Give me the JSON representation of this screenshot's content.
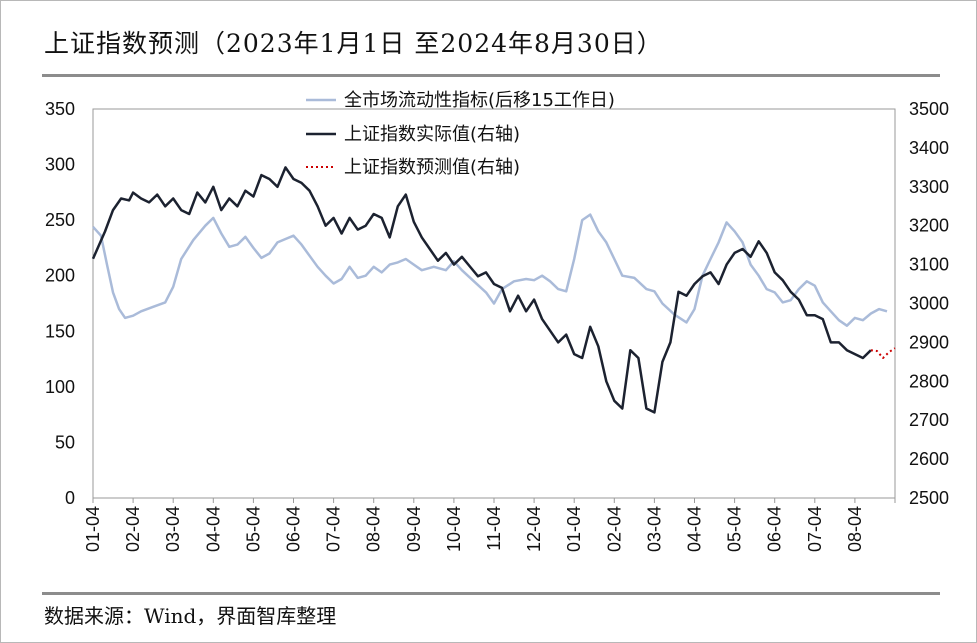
{
  "title": "上证指数预测（2023年1月1日 至2024年8月30日）",
  "source": "数据来源：Wind，界面智库整理",
  "chart_data": {
    "type": "line",
    "title": "上证指数预测（2023年1月1日 至2024年8月30日）",
    "x_tick_labels": [
      "01-04",
      "02-04",
      "03-04",
      "04-04",
      "05-04",
      "06-04",
      "07-04",
      "08-04",
      "09-04",
      "10-04",
      "11-04",
      "12-04",
      "01-04",
      "02-04",
      "03-04",
      "04-04",
      "05-04",
      "06-04",
      "07-04",
      "08-04"
    ],
    "left_axis": {
      "ylim": [
        0,
        350
      ],
      "ticks": [
        0,
        50,
        100,
        150,
        200,
        250,
        300,
        350
      ]
    },
    "right_axis": {
      "ylim": [
        2500,
        3500
      ],
      "ticks": [
        2500,
        2600,
        2700,
        2800,
        2900,
        3000,
        3100,
        3200,
        3300,
        3400,
        3500
      ]
    },
    "legend_position": "top-center",
    "grid": false,
    "series": [
      {
        "name": "全市场流动性指标(后移15工作日)",
        "axis": "left",
        "color": "#aabbd9",
        "x": [
          0,
          0.2,
          0.35,
          0.5,
          0.65,
          0.8,
          1,
          1.2,
          1.5,
          1.8,
          2.0,
          2.2,
          2.5,
          2.8,
          3.0,
          3.2,
          3.4,
          3.6,
          3.8,
          4.0,
          4.2,
          4.4,
          4.6,
          4.8,
          5.0,
          5.2,
          5.4,
          5.6,
          5.8,
          6.0,
          6.2,
          6.4,
          6.6,
          6.8,
          7.0,
          7.2,
          7.4,
          7.6,
          7.8,
          8.0,
          8.2,
          8.5,
          8.8,
          9.0,
          9.2,
          9.5,
          9.8,
          10.0,
          10.2,
          10.5,
          10.8,
          11.0,
          11.2,
          11.4,
          11.6,
          11.8,
          12.0,
          12.2,
          12.4,
          12.6,
          12.8,
          13.0,
          13.2,
          13.5,
          13.8,
          14.0,
          14.2,
          14.5,
          14.8,
          15.0,
          15.2,
          15.4,
          15.6,
          15.8,
          16.0,
          16.2,
          16.4,
          16.6,
          16.8,
          17.0,
          17.2,
          17.4,
          17.6,
          17.8,
          18.0,
          18.2,
          18.4,
          18.6,
          18.8,
          19.0,
          19.2,
          19.4,
          19.6,
          19.8
        ],
        "values": [
          244,
          236,
          210,
          185,
          170,
          162,
          164,
          168,
          172,
          176,
          190,
          215,
          232,
          245,
          252,
          238,
          226,
          228,
          235,
          225,
          216,
          220,
          230,
          233,
          236,
          228,
          218,
          208,
          200,
          193,
          197,
          208,
          198,
          200,
          208,
          203,
          210,
          212,
          215,
          210,
          205,
          208,
          205,
          213,
          205,
          195,
          185,
          175,
          188,
          195,
          197,
          196,
          200,
          195,
          188,
          186,
          215,
          250,
          255,
          240,
          230,
          215,
          200,
          198,
          188,
          186,
          175,
          165,
          158,
          170,
          200,
          215,
          230,
          248,
          240,
          230,
          210,
          200,
          188,
          185,
          176,
          178,
          188,
          195,
          191,
          176,
          168,
          160,
          155,
          162,
          160,
          166,
          170,
          168
        ]
      },
      {
        "name": "上证指数实际值(右轴)",
        "axis": "right",
        "color": "#1c2230",
        "x": [
          0,
          0.15,
          0.3,
          0.5,
          0.7,
          0.9,
          1.0,
          1.2,
          1.4,
          1.6,
          1.8,
          2.0,
          2.2,
          2.4,
          2.6,
          2.8,
          3.0,
          3.2,
          3.4,
          3.6,
          3.8,
          4.0,
          4.2,
          4.4,
          4.6,
          4.8,
          5.0,
          5.2,
          5.4,
          5.6,
          5.8,
          6.0,
          6.2,
          6.4,
          6.6,
          6.8,
          7.0,
          7.2,
          7.4,
          7.6,
          7.8,
          8.0,
          8.2,
          8.4,
          8.6,
          8.8,
          9.0,
          9.2,
          9.4,
          9.6,
          9.8,
          10.0,
          10.2,
          10.4,
          10.6,
          10.8,
          11.0,
          11.2,
          11.4,
          11.6,
          11.8,
          12.0,
          12.2,
          12.4,
          12.6,
          12.8,
          13.0,
          13.2,
          13.4,
          13.6,
          13.8,
          14.0,
          14.2,
          14.4,
          14.6,
          14.8,
          15.0,
          15.2,
          15.4,
          15.6,
          15.8,
          16.0,
          16.2,
          16.4,
          16.6,
          16.8,
          17.0,
          17.2,
          17.4,
          17.6,
          17.8,
          18.0,
          18.2,
          18.4,
          18.6,
          18.8,
          19.0,
          19.2,
          19.4
        ],
        "values": [
          3115,
          3150,
          3185,
          3240,
          3270,
          3265,
          3285,
          3270,
          3260,
          3280,
          3250,
          3270,
          3240,
          3230,
          3285,
          3260,
          3300,
          3240,
          3270,
          3250,
          3290,
          3275,
          3330,
          3320,
          3300,
          3350,
          3320,
          3310,
          3290,
          3250,
          3200,
          3220,
          3180,
          3220,
          3190,
          3200,
          3230,
          3220,
          3170,
          3250,
          3280,
          3210,
          3170,
          3140,
          3110,
          3130,
          3100,
          3120,
          3095,
          3070,
          3080,
          3050,
          3040,
          2980,
          3020,
          2980,
          3010,
          2960,
          2930,
          2900,
          2920,
          2870,
          2860,
          2940,
          2890,
          2800,
          2750,
          2730,
          2880,
          2860,
          2730,
          2720,
          2850,
          2900,
          3030,
          3020,
          3050,
          3070,
          3080,
          3050,
          3100,
          3130,
          3140,
          3120,
          3160,
          3130,
          3080,
          3060,
          3030,
          3010,
          2970,
          2970,
          2960,
          2900,
          2900,
          2880,
          2870,
          2860,
          2880
        ]
      },
      {
        "name": "上证指数预测值(右轴)",
        "axis": "right",
        "color": "#cc0000",
        "style": "dotted",
        "x": [
          19.4,
          19.55,
          19.7,
          19.85,
          20.0
        ],
        "values": [
          2880,
          2878,
          2860,
          2875,
          2885
        ]
      }
    ]
  }
}
